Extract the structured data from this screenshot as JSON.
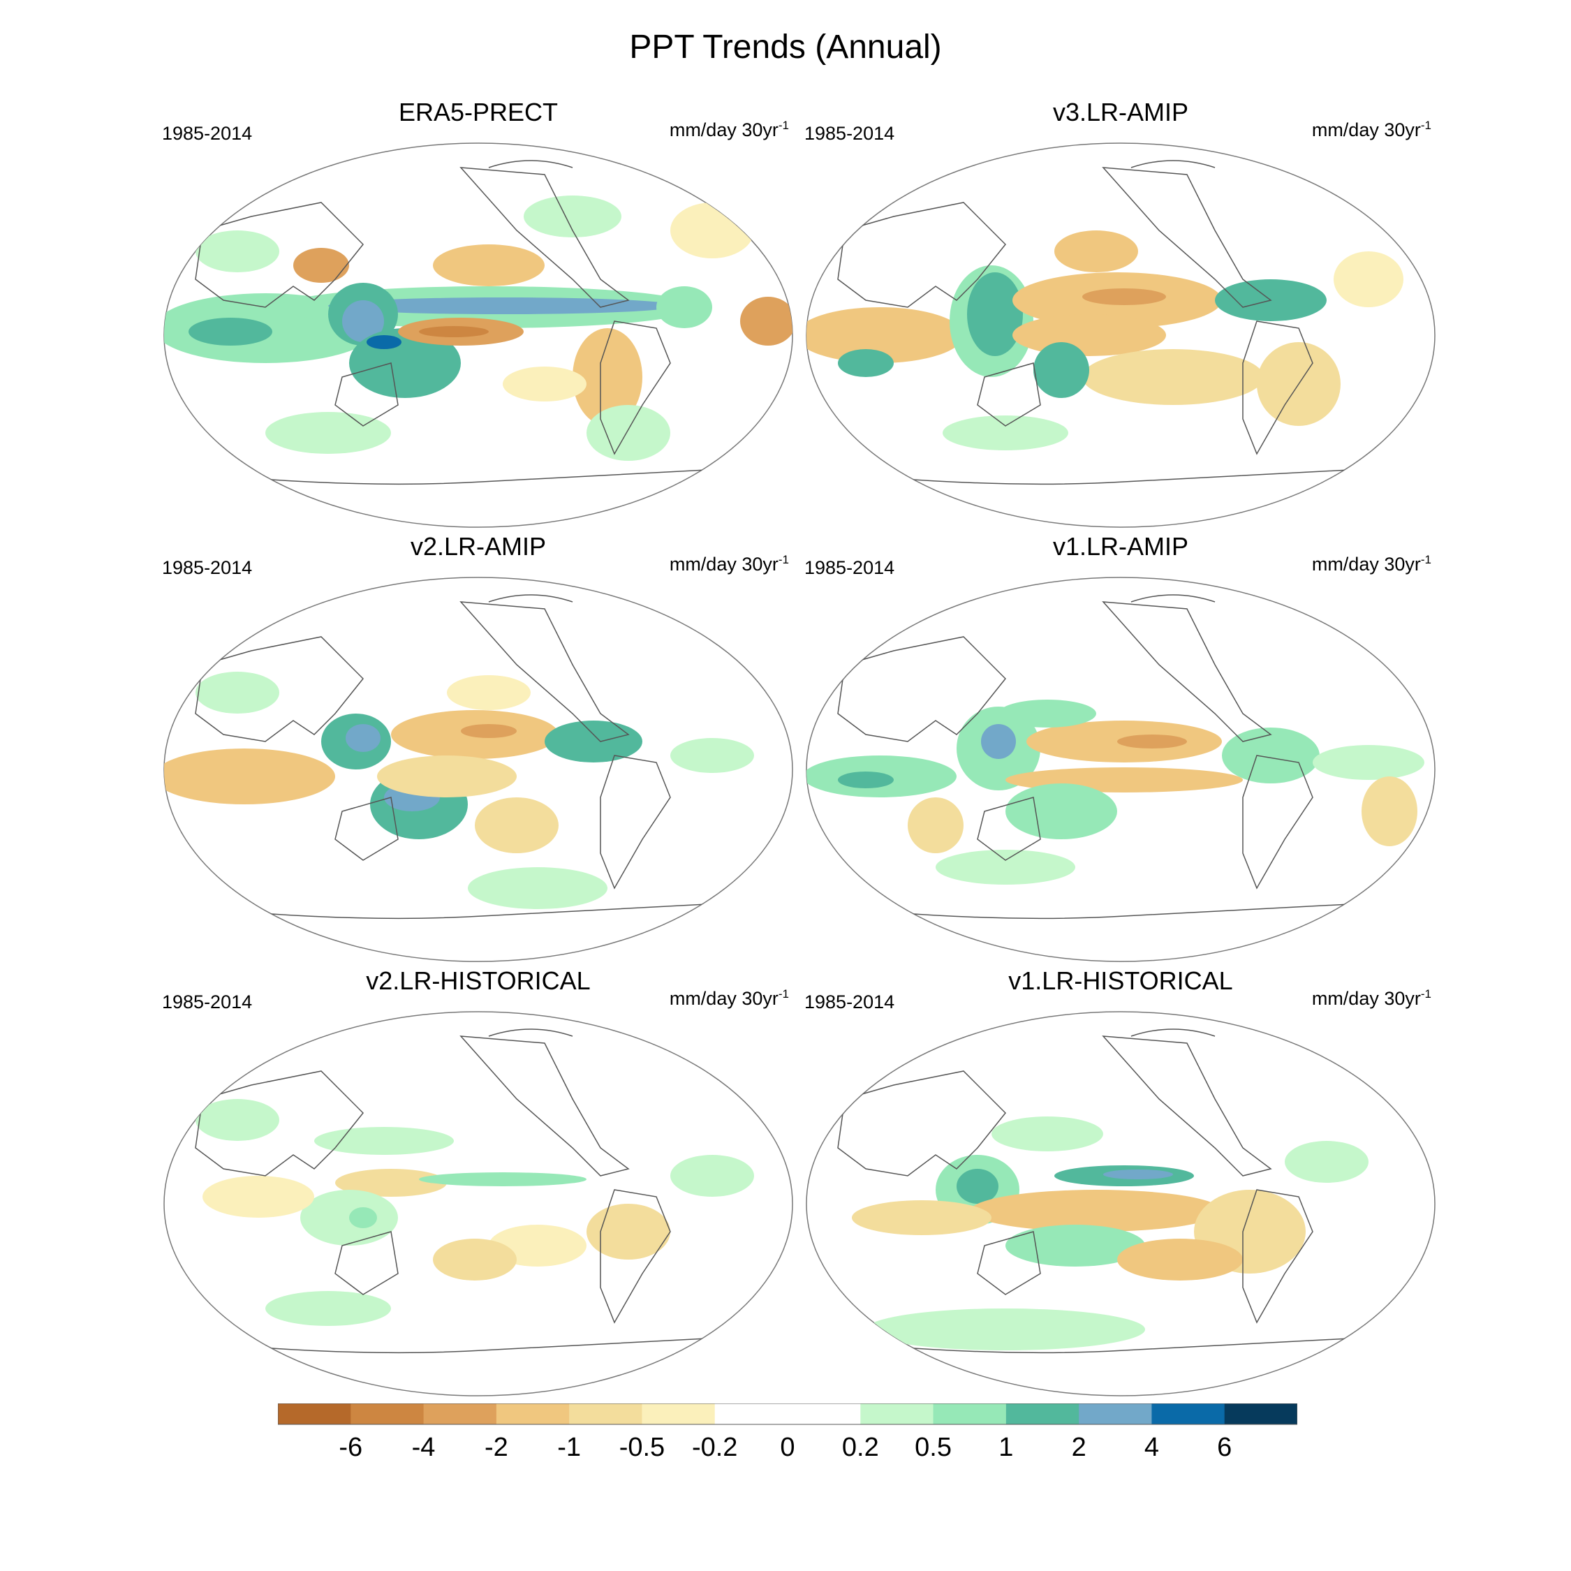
{
  "figure_title": "PPT Trends (Annual)",
  "period": "1985-2014",
  "units_prefix": "mm/day 30yr",
  "units_exponent": "-1",
  "panels": [
    {
      "name": "ERA5-PRECT"
    },
    {
      "name": "v3.LR-AMIP"
    },
    {
      "name": "v2.LR-AMIP"
    },
    {
      "name": "v1.LR-AMIP"
    },
    {
      "name": "v2.LR-HISTORICAL"
    },
    {
      "name": "v1.LR-HISTORICAL"
    }
  ],
  "colorbar": {
    "labels": [
      "-6",
      "-4",
      "-2",
      "-1",
      "-0.5",
      "-0.2",
      "0",
      "0.2",
      "0.5",
      "1",
      "2",
      "4",
      "6"
    ],
    "colors": [
      "#b5692a",
      "#cd8641",
      "#dea15c",
      "#f0c77f",
      "#f3dd9c",
      "#fbf0bb",
      "#ffffff",
      "#ffffff",
      "#c5f7cb",
      "#96e8b7",
      "#52b89c",
      "#72a8c9",
      "#0a6aa8",
      "#063a5c"
    ]
  }
}
